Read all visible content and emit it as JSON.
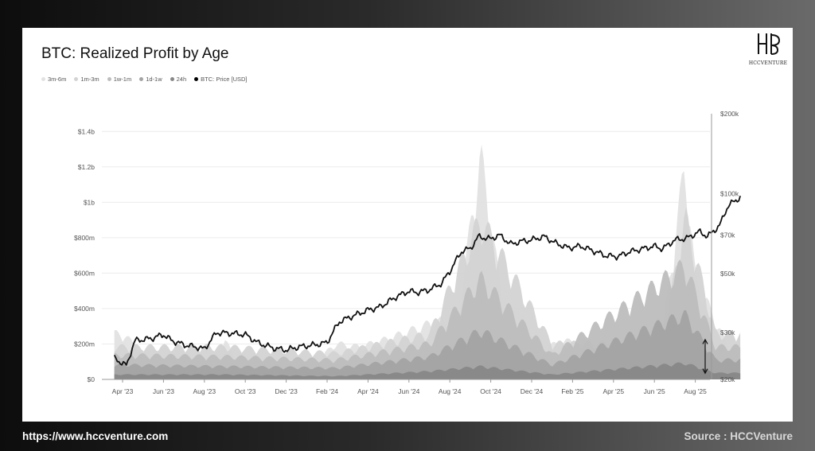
{
  "title": "BTC: Realized Profit by Age",
  "legend": [
    {
      "label": "3m-6m",
      "color": "#e2e2e2"
    },
    {
      "label": "1m-3m",
      "color": "#d3d3d3"
    },
    {
      "label": "1w-1m",
      "color": "#bdbdbd"
    },
    {
      "label": "1d-1w",
      "color": "#a3a3a3"
    },
    {
      "label": "24h",
      "color": "#878787"
    },
    {
      "label": "BTC: Price [USD]",
      "color": "#000000"
    }
  ],
  "logo": {
    "name": "HCCVENTURE"
  },
  "footer": {
    "url": "https://www.hccventure.com",
    "source": "Source : HCCVenture"
  },
  "chart_data": {
    "type": "area",
    "title": "BTC: Realized Profit by Age",
    "y_left": {
      "ticks": [
        "$0",
        "$200m",
        "$400m",
        "$600m",
        "$800m",
        "$1b",
        "$1.2b",
        "$1.4b"
      ],
      "range": [
        0,
        1.5
      ]
    },
    "y_right": {
      "scale": "log",
      "ticks": [
        "$20k",
        "$30k",
        "$50k",
        "$70k",
        "$100k",
        "$200k"
      ],
      "range": [
        20000,
        200000
      ]
    },
    "x_ticks": [
      "Apr '23",
      "Jun '23",
      "Aug '23",
      "Oct '23",
      "Dec '23",
      "Feb '24",
      "Apr '24",
      "Jun '24",
      "Aug '24",
      "Oct '24",
      "Dec '24",
      "Feb '25",
      "Apr '25",
      "Jun '25",
      "Aug '25"
    ],
    "x_range": [
      -0.2,
      15.1
    ],
    "grid": true,
    "legend_position": "top-left",
    "price": [
      [
        -0.2,
        24000
      ],
      [
        0.1,
        22500
      ],
      [
        0.3,
        28000
      ],
      [
        0.7,
        28500
      ],
      [
        1.0,
        29500
      ],
      [
        1.2,
        28000
      ],
      [
        1.5,
        27000
      ],
      [
        1.8,
        26500
      ],
      [
        2.0,
        26000
      ],
      [
        2.3,
        30000
      ],
      [
        2.7,
        29800
      ],
      [
        3.0,
        29500
      ],
      [
        3.3,
        27500
      ],
      [
        3.7,
        26200
      ],
      [
        4.0,
        25800
      ],
      [
        4.3,
        26500
      ],
      [
        4.7,
        27000
      ],
      [
        5.0,
        27500
      ],
      [
        5.3,
        33000
      ],
      [
        5.7,
        35000
      ],
      [
        6.0,
        36500
      ],
      [
        6.3,
        37500
      ],
      [
        6.7,
        41000
      ],
      [
        7.0,
        43000
      ],
      [
        7.2,
        42500
      ],
      [
        7.5,
        43500
      ],
      [
        7.8,
        46000
      ],
      [
        8.0,
        51000
      ],
      [
        8.3,
        61000
      ],
      [
        8.5,
        62000
      ],
      [
        8.7,
        69000
      ],
      [
        9.0,
        67500
      ],
      [
        9.2,
        70000
      ],
      [
        9.5,
        64500
      ],
      [
        9.7,
        66000
      ],
      [
        10.0,
        67000
      ],
      [
        10.3,
        69000
      ],
      [
        10.6,
        65000
      ],
      [
        10.9,
        62500
      ],
      [
        11.2,
        63500
      ],
      [
        11.5,
        61000
      ],
      [
        11.8,
        58500
      ],
      [
        12.1,
        58000
      ],
      [
        12.4,
        60500
      ],
      [
        12.7,
        62000
      ],
      [
        13.0,
        63500
      ],
      [
        13.2,
        62000
      ],
      [
        13.5,
        67000
      ],
      [
        13.8,
        68000
      ],
      [
        14.1,
        72000
      ],
      [
        14.3,
        69000
      ],
      [
        14.6,
        76000
      ],
      [
        14.8,
        90000
      ],
      [
        15.1,
        97000
      ]
    ],
    "price_note": "x in months from Apr '23 tick (0) to Aug '25 tick (14); price in USD",
    "series": [
      {
        "name": "3m-6m",
        "values": [
          [
            0,
            0.28
          ],
          [
            1.0,
            0.05
          ],
          [
            2.0,
            0.04
          ],
          [
            2.5,
            0.24
          ],
          [
            3.0,
            0.03
          ],
          [
            4.5,
            0.05
          ],
          [
            5.2,
            0.22
          ],
          [
            5.8,
            0.2
          ],
          [
            6.5,
            0.25
          ],
          [
            7.5,
            0.34
          ],
          [
            8.2,
            0.38
          ],
          [
            8.75,
            1.38
          ],
          [
            9.3,
            0.45
          ],
          [
            10.0,
            0.18
          ],
          [
            11.0,
            0.24
          ],
          [
            12.0,
            0.05
          ],
          [
            12.5,
            0.14
          ],
          [
            13.2,
            0.3
          ],
          [
            13.75,
            1.32
          ],
          [
            14.0,
            0.62
          ],
          [
            14.8,
            0.2
          ]
        ]
      },
      {
        "name": "1m-3m",
        "values": [
          [
            0,
            0.2
          ],
          [
            2.5,
            0.2
          ],
          [
            5.2,
            0.16
          ],
          [
            7.5,
            0.28
          ],
          [
            8.75,
            0.98
          ],
          [
            10.5,
            0.22
          ],
          [
            13.2,
            0.22
          ],
          [
            13.75,
            1.0
          ],
          [
            14.5,
            0.28
          ]
        ]
      },
      {
        "name": "1w-1m",
        "values": [
          [
            0,
            0.15
          ],
          [
            2.5,
            0.14
          ],
          [
            5.2,
            0.12
          ],
          [
            7.5,
            0.22
          ],
          [
            8.75,
            0.62
          ],
          [
            10.5,
            0.15
          ],
          [
            13.75,
            0.7
          ],
          [
            14.5,
            0.2
          ]
        ]
      },
      {
        "name": "1d-1w",
        "values": [
          [
            0,
            0.09
          ],
          [
            2.5,
            0.08
          ],
          [
            5.2,
            0.07
          ],
          [
            7.5,
            0.14
          ],
          [
            8.75,
            0.3
          ],
          [
            10.5,
            0.09
          ],
          [
            13.75,
            0.4
          ],
          [
            14.5,
            0.12
          ]
        ]
      },
      {
        "name": "24h",
        "values": [
          [
            0,
            0.03
          ],
          [
            2.5,
            0.03
          ],
          [
            5.2,
            0.02
          ],
          [
            7.5,
            0.05
          ],
          [
            8.75,
            0.08
          ],
          [
            10.5,
            0.03
          ],
          [
            13.75,
            0.1
          ],
          [
            14.5,
            0.04
          ]
        ]
      }
    ]
  }
}
